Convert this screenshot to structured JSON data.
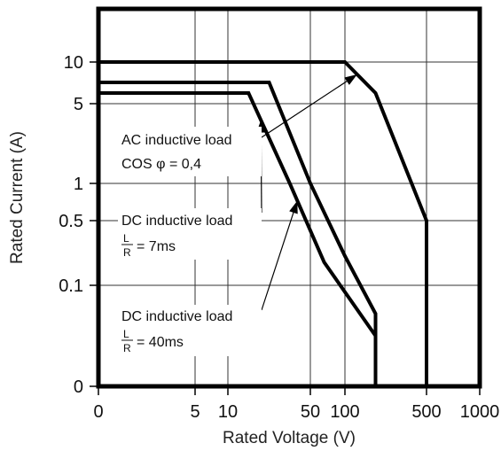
{
  "chart_data": {
    "type": "line",
    "xlabel": "Rated Voltage (V)",
    "ylabel": "Rated Current (A)",
    "x_ticks": [
      "0",
      "5",
      "10",
      "50",
      "100",
      "500",
      "1000"
    ],
    "y_ticks": [
      "10",
      "5",
      "1",
      "0.5",
      "0.1",
      "0"
    ],
    "grid": true,
    "series": [
      {
        "name": "AC inductive load COS φ = 0,4",
        "points": [
          [
            0,
            10
          ],
          [
            100,
            10
          ],
          [
            250,
            6
          ],
          [
            500,
            0.5
          ],
          [
            500,
            0
          ]
        ]
      },
      {
        "name": "DC inductive load L/R = 7ms",
        "points": [
          [
            0,
            7
          ],
          [
            30,
            7
          ],
          [
            50,
            1
          ],
          [
            100,
            0.2
          ],
          [
            250,
            0.05
          ],
          [
            250,
            0
          ]
        ]
      },
      {
        "name": "DC inductive load L/R = 40ms",
        "points": [
          [
            0,
            6
          ],
          [
            20,
            6
          ],
          [
            40,
            1
          ],
          [
            70,
            0.15
          ],
          [
            250,
            0.03
          ],
          [
            250,
            0
          ]
        ]
      }
    ],
    "annotations": {
      "ac_line1": "AC inductive load",
      "ac_line2": "COS φ = 0,4",
      "dc7_line1": "DC inductive load",
      "dc40_line1": "DC inductive load",
      "frac_num": "L",
      "frac_den": "R",
      "dc7_value": "= 7ms",
      "dc40_value": "= 40ms"
    }
  }
}
